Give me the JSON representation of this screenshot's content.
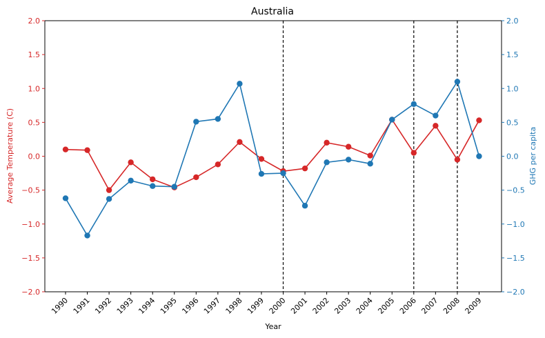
{
  "chart_data": {
    "type": "line",
    "title": "Australia",
    "xlabel": "Year",
    "ylabel_left": "Average Temperature (C)",
    "ylabel_right": "GHG per capita",
    "categories": [
      "1990",
      "1991",
      "1992",
      "1993",
      "1994",
      "1995",
      "1996",
      "1997",
      "1998",
      "1999",
      "2000",
      "2001",
      "2002",
      "2003",
      "2004",
      "2005",
      "2006",
      "2007",
      "2008",
      "2009"
    ],
    "ylim": [
      -2.0,
      2.0
    ],
    "yticks": [
      "−2.0",
      "−1.5",
      "−1.0",
      "−0.5",
      "0.0",
      "0.5",
      "1.0",
      "1.5",
      "2.0"
    ],
    "series": [
      {
        "axis": "left",
        "color": "#d62728",
        "values": [
          0.1,
          0.09,
          -0.5,
          -0.09,
          -0.34,
          -0.46,
          -0.31,
          -0.12,
          0.21,
          -0.04,
          -0.22,
          -0.18,
          0.2,
          0.14,
          0.01,
          0.54,
          0.05,
          0.45,
          -0.05,
          0.53
        ]
      },
      {
        "axis": "right",
        "color": "#1f77b4",
        "values": [
          -0.62,
          -1.17,
          -0.63,
          -0.36,
          -0.44,
          -0.45,
          0.51,
          0.55,
          1.07,
          -0.26,
          -0.25,
          -0.73,
          -0.09,
          -0.05,
          -0.11,
          0.54,
          0.77,
          0.6,
          1.1,
          0.0
        ]
      }
    ],
    "vlines": [
      "2000",
      "2006",
      "2008"
    ],
    "grid": false
  }
}
